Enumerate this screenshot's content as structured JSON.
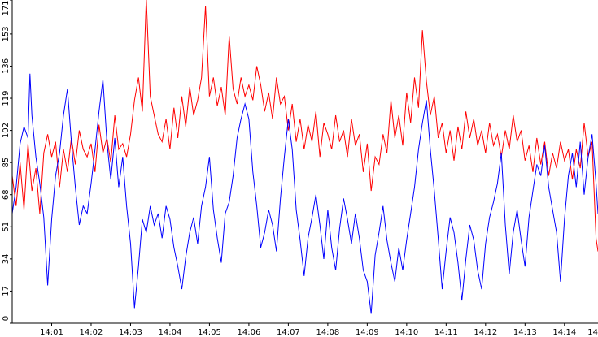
{
  "chart_data": {
    "type": "line",
    "title": "",
    "xlabel": "",
    "ylabel": "",
    "ylim": [
      0,
      171
    ],
    "y_ticks": [
      0,
      17,
      34,
      51,
      68,
      85,
      102,
      119,
      136,
      153,
      171
    ],
    "x_ticks": [
      "14:01",
      "14:02",
      "14:03",
      "14:04",
      "14:05",
      "14:06",
      "14:07",
      "14:08",
      "14:09",
      "14:10",
      "14:11",
      "14:12",
      "14:13",
      "14:14",
      "14"
    ],
    "grid": false,
    "legend": "none",
    "x_range_minutes": [
      0.0,
      14.85
    ],
    "series": [
      {
        "color": "#ff0000",
        "points": [
          [
            0.0,
            78
          ],
          [
            0.1,
            62
          ],
          [
            0.2,
            85
          ],
          [
            0.3,
            60
          ],
          [
            0.4,
            95
          ],
          [
            0.5,
            70
          ],
          [
            0.6,
            82
          ],
          [
            0.7,
            58
          ],
          [
            0.8,
            90
          ],
          [
            0.9,
            100
          ],
          [
            1.0,
            88
          ],
          [
            1.1,
            96
          ],
          [
            1.2,
            72
          ],
          [
            1.3,
            92
          ],
          [
            1.4,
            80
          ],
          [
            1.5,
            98
          ],
          [
            1.6,
            84
          ],
          [
            1.7,
            102
          ],
          [
            1.8,
            92
          ],
          [
            1.9,
            88
          ],
          [
            2.0,
            95
          ],
          [
            2.1,
            80
          ],
          [
            2.2,
            105
          ],
          [
            2.3,
            90
          ],
          [
            2.4,
            98
          ],
          [
            2.5,
            85
          ],
          [
            2.6,
            110
          ],
          [
            2.7,
            92
          ],
          [
            2.8,
            95
          ],
          [
            2.9,
            88
          ],
          [
            3.0,
            100
          ],
          [
            3.1,
            118
          ],
          [
            3.2,
            130
          ],
          [
            3.3,
            112
          ],
          [
            3.4,
            172
          ],
          [
            3.5,
            120
          ],
          [
            3.6,
            110
          ],
          [
            3.7,
            100
          ],
          [
            3.8,
            96
          ],
          [
            3.9,
            108
          ],
          [
            4.0,
            92
          ],
          [
            4.1,
            114
          ],
          [
            4.2,
            98
          ],
          [
            4.3,
            120
          ],
          [
            4.4,
            104
          ],
          [
            4.5,
            125
          ],
          [
            4.6,
            110
          ],
          [
            4.7,
            118
          ],
          [
            4.8,
            130
          ],
          [
            4.9,
            168
          ],
          [
            5.0,
            120
          ],
          [
            5.1,
            130
          ],
          [
            5.2,
            115
          ],
          [
            5.3,
            125
          ],
          [
            5.4,
            110
          ],
          [
            5.5,
            152
          ],
          [
            5.6,
            124
          ],
          [
            5.7,
            116
          ],
          [
            5.8,
            130
          ],
          [
            5.9,
            120
          ],
          [
            6.0,
            126
          ],
          [
            6.1,
            118
          ],
          [
            6.2,
            136
          ],
          [
            6.3,
            126
          ],
          [
            6.4,
            112
          ],
          [
            6.5,
            122
          ],
          [
            6.6,
            108
          ],
          [
            6.7,
            130
          ],
          [
            6.8,
            116
          ],
          [
            6.9,
            120
          ],
          [
            7.0,
            102
          ],
          [
            7.1,
            116
          ],
          [
            7.2,
            96
          ],
          [
            7.3,
            108
          ],
          [
            7.4,
            92
          ],
          [
            7.5,
            105
          ],
          [
            7.6,
            96
          ],
          [
            7.7,
            112
          ],
          [
            7.8,
            88
          ],
          [
            7.9,
            106
          ],
          [
            8.0,
            100
          ],
          [
            8.1,
            92
          ],
          [
            8.2,
            110
          ],
          [
            8.3,
            96
          ],
          [
            8.4,
            102
          ],
          [
            8.5,
            88
          ],
          [
            8.6,
            108
          ],
          [
            8.7,
            94
          ],
          [
            8.8,
            100
          ],
          [
            8.9,
            80
          ],
          [
            9.0,
            95
          ],
          [
            9.1,
            70
          ],
          [
            9.2,
            88
          ],
          [
            9.3,
            84
          ],
          [
            9.4,
            100
          ],
          [
            9.5,
            90
          ],
          [
            9.6,
            118
          ],
          [
            9.7,
            98
          ],
          [
            9.8,
            110
          ],
          [
            9.9,
            94
          ],
          [
            10.0,
            122
          ],
          [
            10.1,
            106
          ],
          [
            10.2,
            130
          ],
          [
            10.3,
            114
          ],
          [
            10.4,
            155
          ],
          [
            10.5,
            128
          ],
          [
            10.6,
            110
          ],
          [
            10.7,
            120
          ],
          [
            10.8,
            98
          ],
          [
            10.9,
            106
          ],
          [
            11.0,
            90
          ],
          [
            11.1,
            102
          ],
          [
            11.2,
            86
          ],
          [
            11.3,
            104
          ],
          [
            11.4,
            92
          ],
          [
            11.5,
            112
          ],
          [
            11.6,
            98
          ],
          [
            11.7,
            108
          ],
          [
            11.8,
            94
          ],
          [
            11.9,
            102
          ],
          [
            12.0,
            90
          ],
          [
            12.1,
            106
          ],
          [
            12.2,
            94
          ],
          [
            12.3,
            100
          ],
          [
            12.4,
            88
          ],
          [
            12.5,
            102
          ],
          [
            12.6,
            92
          ],
          [
            12.7,
            110
          ],
          [
            12.8,
            96
          ],
          [
            12.9,
            102
          ],
          [
            13.0,
            86
          ],
          [
            13.1,
            94
          ],
          [
            13.2,
            80
          ],
          [
            13.3,
            98
          ],
          [
            13.4,
            84
          ],
          [
            13.5,
            96
          ],
          [
            13.6,
            78
          ],
          [
            13.7,
            90
          ],
          [
            13.8,
            82
          ],
          [
            13.9,
            96
          ],
          [
            14.0,
            86
          ],
          [
            14.1,
            92
          ],
          [
            14.2,
            76
          ],
          [
            14.3,
            92
          ],
          [
            14.4,
            82
          ],
          [
            14.5,
            106
          ],
          [
            14.6,
            88
          ],
          [
            14.7,
            96
          ],
          [
            14.8,
            45
          ],
          [
            14.85,
            38
          ]
        ]
      },
      {
        "color": "#0000ff",
        "points": [
          [
            0.0,
            58
          ],
          [
            0.1,
            72
          ],
          [
            0.2,
            95
          ],
          [
            0.3,
            104
          ],
          [
            0.4,
            98
          ],
          [
            0.45,
            132
          ],
          [
            0.5,
            110
          ],
          [
            0.6,
            88
          ],
          [
            0.7,
            74
          ],
          [
            0.8,
            56
          ],
          [
            0.9,
            20
          ],
          [
            1.0,
            55
          ],
          [
            1.1,
            78
          ],
          [
            1.2,
            90
          ],
          [
            1.3,
            110
          ],
          [
            1.4,
            124
          ],
          [
            1.5,
            96
          ],
          [
            1.6,
            72
          ],
          [
            1.7,
            52
          ],
          [
            1.8,
            62
          ],
          [
            1.9,
            58
          ],
          [
            2.0,
            74
          ],
          [
            2.1,
            92
          ],
          [
            2.2,
            112
          ],
          [
            2.3,
            129
          ],
          [
            2.4,
            96
          ],
          [
            2.5,
            76
          ],
          [
            2.6,
            98
          ],
          [
            2.7,
            72
          ],
          [
            2.8,
            88
          ],
          [
            2.9,
            62
          ],
          [
            3.0,
            42
          ],
          [
            3.1,
            8
          ],
          [
            3.2,
            30
          ],
          [
            3.3,
            55
          ],
          [
            3.4,
            48
          ],
          [
            3.5,
            62
          ],
          [
            3.6,
            52
          ],
          [
            3.7,
            58
          ],
          [
            3.8,
            45
          ],
          [
            3.9,
            62
          ],
          [
            4.0,
            55
          ],
          [
            4.1,
            40
          ],
          [
            4.2,
            30
          ],
          [
            4.3,
            18
          ],
          [
            4.4,
            35
          ],
          [
            4.5,
            48
          ],
          [
            4.6,
            56
          ],
          [
            4.7,
            42
          ],
          [
            4.8,
            62
          ],
          [
            4.9,
            72
          ],
          [
            5.0,
            88
          ],
          [
            5.1,
            60
          ],
          [
            5.2,
            45
          ],
          [
            5.3,
            32
          ],
          [
            5.4,
            58
          ],
          [
            5.5,
            64
          ],
          [
            5.6,
            78
          ],
          [
            5.7,
            98
          ],
          [
            5.8,
            108
          ],
          [
            5.9,
            116
          ],
          [
            6.0,
            108
          ],
          [
            6.1,
            80
          ],
          [
            6.2,
            62
          ],
          [
            6.3,
            40
          ],
          [
            6.4,
            48
          ],
          [
            6.5,
            60
          ],
          [
            6.6,
            52
          ],
          [
            6.7,
            38
          ],
          [
            6.8,
            66
          ],
          [
            6.9,
            88
          ],
          [
            7.0,
            108
          ],
          [
            7.1,
            92
          ],
          [
            7.2,
            60
          ],
          [
            7.3,
            44
          ],
          [
            7.4,
            25
          ],
          [
            7.5,
            45
          ],
          [
            7.6,
            56
          ],
          [
            7.7,
            68
          ],
          [
            7.8,
            52
          ],
          [
            7.9,
            34
          ],
          [
            8.0,
            60
          ],
          [
            8.1,
            40
          ],
          [
            8.2,
            28
          ],
          [
            8.3,
            50
          ],
          [
            8.4,
            66
          ],
          [
            8.5,
            55
          ],
          [
            8.6,
            42
          ],
          [
            8.7,
            58
          ],
          [
            8.8,
            45
          ],
          [
            8.9,
            28
          ],
          [
            9.0,
            22
          ],
          [
            9.1,
            5
          ],
          [
            9.2,
            36
          ],
          [
            9.3,
            48
          ],
          [
            9.4,
            62
          ],
          [
            9.5,
            44
          ],
          [
            9.6,
            32
          ],
          [
            9.7,
            22
          ],
          [
            9.8,
            40
          ],
          [
            9.9,
            28
          ],
          [
            10.0,
            44
          ],
          [
            10.1,
            58
          ],
          [
            10.2,
            72
          ],
          [
            10.3,
            92
          ],
          [
            10.4,
            106
          ],
          [
            10.5,
            118
          ],
          [
            10.6,
            92
          ],
          [
            10.7,
            70
          ],
          [
            10.8,
            45
          ],
          [
            10.9,
            18
          ],
          [
            11.0,
            38
          ],
          [
            11.1,
            56
          ],
          [
            11.2,
            48
          ],
          [
            11.3,
            32
          ],
          [
            11.4,
            12
          ],
          [
            11.5,
            34
          ],
          [
            11.6,
            52
          ],
          [
            11.7,
            44
          ],
          [
            11.8,
            28
          ],
          [
            11.9,
            18
          ],
          [
            12.0,
            42
          ],
          [
            12.1,
            56
          ],
          [
            12.2,
            64
          ],
          [
            12.3,
            74
          ],
          [
            12.4,
            90
          ],
          [
            12.5,
            52
          ],
          [
            12.6,
            26
          ],
          [
            12.7,
            48
          ],
          [
            12.8,
            60
          ],
          [
            12.9,
            44
          ],
          [
            13.0,
            30
          ],
          [
            13.1,
            56
          ],
          [
            13.2,
            70
          ],
          [
            13.3,
            84
          ],
          [
            13.4,
            78
          ],
          [
            13.5,
            94
          ],
          [
            13.6,
            72
          ],
          [
            13.7,
            60
          ],
          [
            13.8,
            48
          ],
          [
            13.9,
            22
          ],
          [
            14.0,
            55
          ],
          [
            14.1,
            78
          ],
          [
            14.2,
            90
          ],
          [
            14.3,
            72
          ],
          [
            14.4,
            96
          ],
          [
            14.5,
            68
          ],
          [
            14.6,
            88
          ],
          [
            14.7,
            100
          ],
          [
            14.8,
            74
          ],
          [
            14.85,
            58
          ]
        ]
      }
    ]
  }
}
